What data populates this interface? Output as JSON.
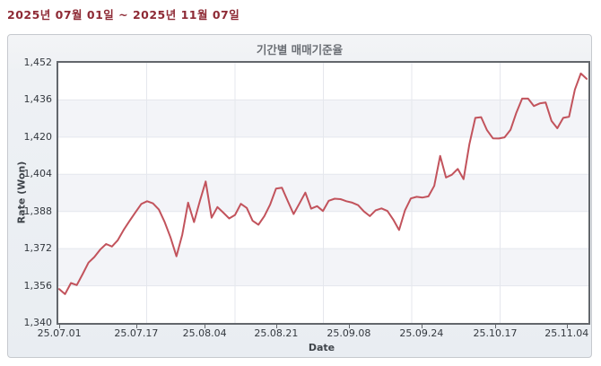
{
  "header": {
    "date_range": "2025년 07월 01일 ~ 2025년 11월 07일"
  },
  "chart": {
    "title": "기간별 매매기준율",
    "y_axis_title": "Rate (Won)",
    "x_axis_title": "Date"
  },
  "colors": {
    "line": "#c2535c",
    "heading": "#8e2a35",
    "plot_border": "#63676c",
    "gridline": "#e5e7ed",
    "band": "#f3f4f8"
  },
  "chart_data": {
    "type": "line",
    "title": "기간별 매매기준율",
    "xlabel": "Date",
    "ylabel": "Rate (Won)",
    "ylim": [
      1340,
      1452
    ],
    "grid": true,
    "legend": "none",
    "y_ticks": [
      "1,452",
      "1,436",
      "1,420",
      "1,404",
      "1,388",
      "1,372",
      "1,356",
      "1,340"
    ],
    "x_ticks": [
      "25.07.01",
      "25.07.17",
      "25.08.04",
      "25.08.21",
      "25.09.08",
      "25.09.24",
      "25.10.17",
      "25.11.04"
    ],
    "x_tick_positions": [
      0.002,
      0.147,
      0.276,
      0.411,
      0.548,
      0.685,
      0.824,
      0.959
    ],
    "series_name": "매매기준율",
    "values": [
      1354.6,
      1352.4,
      1357.2,
      1356.3,
      1361.0,
      1366.0,
      1368.4,
      1371.6,
      1374.0,
      1372.9,
      1375.6,
      1380.1,
      1383.9,
      1387.6,
      1391.2,
      1392.4,
      1391.5,
      1388.8,
      1383.4,
      1376.8,
      1368.7,
      1378.0,
      1391.8,
      1383.4,
      1392.5,
      1400.9,
      1385.3,
      1389.9,
      1387.5,
      1385.0,
      1386.5,
      1391.3,
      1389.5,
      1384.0,
      1382.3,
      1386.0,
      1391.0,
      1397.8,
      1398.2,
      1392.5,
      1386.9,
      1391.5,
      1396.1,
      1389.2,
      1390.3,
      1388.2,
      1392.6,
      1393.5,
      1393.3,
      1392.4,
      1391.8,
      1390.7,
      1388.0,
      1386.0,
      1388.5,
      1389.3,
      1388.2,
      1384.5,
      1380.0,
      1388.5,
      1393.6,
      1394.3,
      1394.0,
      1394.5,
      1399.0,
      1411.9,
      1402.6,
      1403.8,
      1406.3,
      1401.9,
      1417.0,
      1428.3,
      1428.6,
      1423.0,
      1419.5,
      1419.4,
      1419.9,
      1423.1,
      1430.5,
      1436.6,
      1436.6,
      1433.4,
      1434.5,
      1434.9,
      1427.0,
      1423.8,
      1428.3,
      1428.8,
      1440.5,
      1447.4,
      1445.1
    ]
  }
}
